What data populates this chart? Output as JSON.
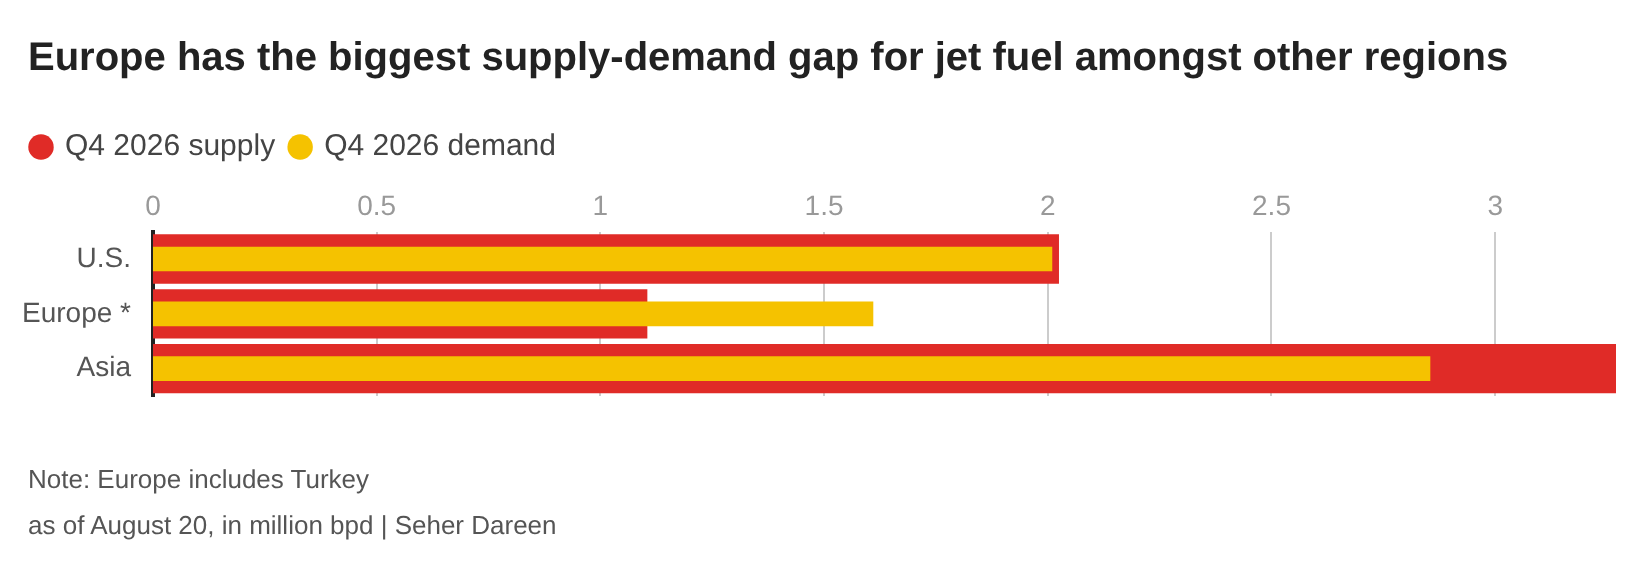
{
  "chart_data": {
    "type": "bar",
    "orientation": "horizontal",
    "title": "Europe has the biggest supply-demand gap for jet fuel amongst other regions",
    "categories": [
      "U.S.",
      "Europe *",
      "Asia"
    ],
    "series": [
      {
        "name": "Q4 2026 supply",
        "color": "#e02b27",
        "values": [
          2.025,
          1.105,
          3.27
        ]
      },
      {
        "name": "Q4 2026 demand",
        "color": "#f5c200",
        "values": [
          2.01,
          1.61,
          2.855
        ]
      }
    ],
    "xlim": [
      0,
      3.27
    ],
    "xticks": [
      0,
      0.5,
      1,
      1.5,
      2,
      2.5,
      3
    ],
    "grid": "x",
    "legend": "top left",
    "annotations": [
      "Note: Europe includes Turkey",
      "as of August 20, in million bpd | Seher Dareen"
    ]
  }
}
